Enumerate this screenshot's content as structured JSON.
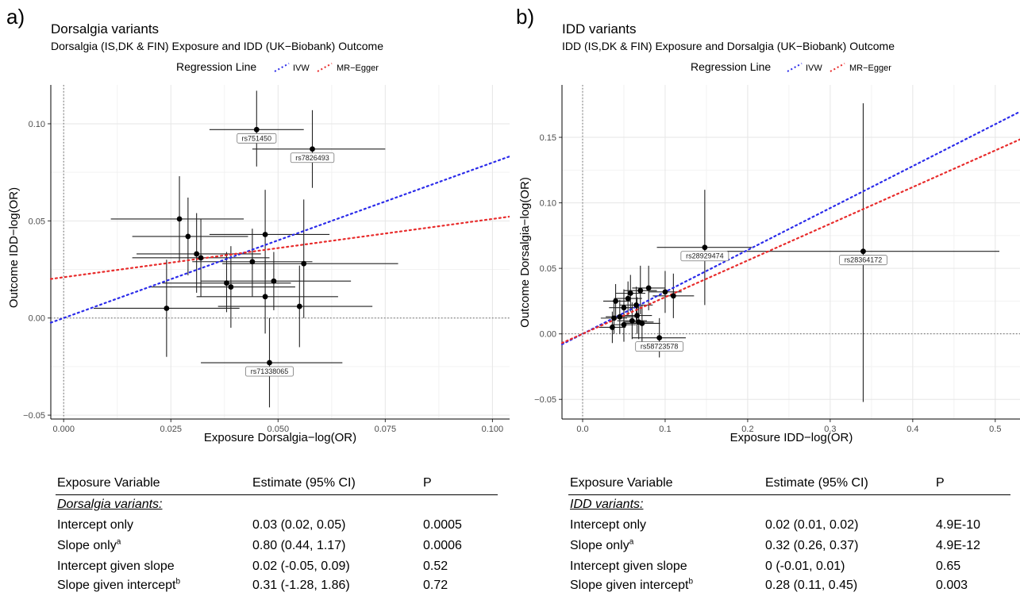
{
  "chart_data": [
    {
      "panel_label": "a)",
      "type": "scatter",
      "title": "Dorsalgia variants",
      "subtitle": "Dorsalgia (IS,DK & FIN) Exposure and IDD (UK−Biobank) Outcome",
      "legend_title": "Regression Line",
      "legend_position": "top",
      "series": [
        {
          "name": "IVW",
          "color": "#2b2bea"
        },
        {
          "name": "MR−Egger",
          "color": "#e82b2b"
        }
      ],
      "xlabel": "Exposure Dorsalgia−log(OR)",
      "ylabel": "Outcome IDD−log(OR)",
      "xlim": [
        -0.003,
        0.104
      ],
      "ylim": [
        -0.052,
        0.12
      ],
      "xticks": [
        0.0,
        0.025,
        0.05,
        0.075,
        0.1
      ],
      "xtick_labels": [
        "0.000",
        "0.025",
        "0.050",
        "0.075",
        "0.100"
      ],
      "yticks": [
        -0.05,
        0.0,
        0.05,
        0.1
      ],
      "ytick_labels": [
        "−0.05",
        "0.00",
        "0.05",
        "0.10"
      ],
      "grid": true,
      "lines": [
        {
          "name": "IVW",
          "intercept": 0.0,
          "slope": 0.8
        },
        {
          "name": "MR−Egger",
          "intercept": 0.021,
          "slope": 0.3
        }
      ],
      "points": [
        {
          "x": 0.045,
          "y": 0.097,
          "xlo": 0.034,
          "xhi": 0.056,
          "ylo": 0.078,
          "yhi": 0.117,
          "label": "rs751450"
        },
        {
          "x": 0.058,
          "y": 0.087,
          "xlo": 0.044,
          "xhi": 0.075,
          "ylo": 0.067,
          "yhi": 0.107,
          "label": "rs7826493"
        },
        {
          "x": 0.048,
          "y": -0.023,
          "xlo": 0.032,
          "xhi": 0.065,
          "ylo": -0.046,
          "yhi": 0.0,
          "label": "rs71338065"
        },
        {
          "x": 0.027,
          "y": 0.051,
          "xlo": 0.011,
          "xhi": 0.042,
          "ylo": 0.029,
          "yhi": 0.073
        },
        {
          "x": 0.029,
          "y": 0.042,
          "xlo": 0.016,
          "xhi": 0.043,
          "ylo": 0.022,
          "yhi": 0.062
        },
        {
          "x": 0.031,
          "y": 0.033,
          "xlo": 0.017,
          "xhi": 0.046,
          "ylo": 0.013,
          "yhi": 0.054
        },
        {
          "x": 0.032,
          "y": 0.031,
          "xlo": 0.016,
          "xhi": 0.048,
          "ylo": 0.011,
          "yhi": 0.051
        },
        {
          "x": 0.024,
          "y": 0.005,
          "xlo": 0.007,
          "xhi": 0.041,
          "ylo": -0.02,
          "yhi": 0.03
        },
        {
          "x": 0.038,
          "y": 0.018,
          "xlo": 0.023,
          "xhi": 0.053,
          "ylo": 0.003,
          "yhi": 0.034
        },
        {
          "x": 0.039,
          "y": 0.016,
          "xlo": 0.02,
          "xhi": 0.054,
          "ylo": -0.005,
          "yhi": 0.037
        },
        {
          "x": 0.044,
          "y": 0.029,
          "xlo": 0.03,
          "xhi": 0.058,
          "ylo": 0.011,
          "yhi": 0.046
        },
        {
          "x": 0.047,
          "y": 0.043,
          "xlo": 0.034,
          "xhi": 0.062,
          "ylo": 0.02,
          "yhi": 0.066
        },
        {
          "x": 0.047,
          "y": 0.011,
          "xlo": 0.031,
          "xhi": 0.064,
          "ylo": -0.008,
          "yhi": 0.03
        },
        {
          "x": 0.049,
          "y": 0.019,
          "xlo": 0.032,
          "xhi": 0.067,
          "ylo": 0.004,
          "yhi": 0.034
        },
        {
          "x": 0.055,
          "y": 0.006,
          "xlo": 0.036,
          "xhi": 0.072,
          "ylo": -0.015,
          "yhi": 0.027
        },
        {
          "x": 0.056,
          "y": 0.028,
          "xlo": 0.037,
          "xhi": 0.078,
          "ylo": 0.0,
          "yhi": 0.061
        }
      ]
    },
    {
      "panel_label": "b)",
      "type": "scatter",
      "title": "IDD variants",
      "subtitle": "IDD (IS,DK & FIN) Exposure and Dorsalgia (UK−Biobank) Outcome",
      "legend_title": "Regression Line",
      "legend_position": "top",
      "series": [
        {
          "name": "IVW",
          "color": "#2b2bea"
        },
        {
          "name": "MR−Egger",
          "color": "#e82b2b"
        }
      ],
      "xlabel": "Exposure IDD−log(OR)",
      "ylabel": "Outcome Dorsalgia−log(OR)",
      "xlim": [
        -0.025,
        0.53
      ],
      "ylim": [
        -0.065,
        0.19
      ],
      "xticks": [
        0.0,
        0.1,
        0.2,
        0.3,
        0.4,
        0.5
      ],
      "xtick_labels": [
        "0.0",
        "0.1",
        "0.2",
        "0.3",
        "0.4",
        "0.5"
      ],
      "yticks": [
        -0.05,
        0.0,
        0.05,
        0.1,
        0.15
      ],
      "ytick_labels": [
        "−0.05",
        "0.00",
        "0.05",
        "0.10",
        "0.15"
      ],
      "grid": true,
      "lines": [
        {
          "name": "IVW",
          "intercept": 0.0,
          "slope": 0.32
        },
        {
          "name": "MR−Egger",
          "intercept": 0.0,
          "slope": 0.28
        }
      ],
      "points": [
        {
          "x": 0.148,
          "y": 0.066,
          "xlo": 0.09,
          "xhi": 0.205,
          "ylo": 0.022,
          "yhi": 0.11,
          "label": "rs28929474"
        },
        {
          "x": 0.34,
          "y": 0.063,
          "xlo": 0.175,
          "xhi": 0.505,
          "ylo": -0.052,
          "yhi": 0.176,
          "label": "rs28364172"
        },
        {
          "x": 0.093,
          "y": -0.003,
          "xlo": 0.06,
          "xhi": 0.125,
          "ylo": -0.018,
          "yhi": 0.012,
          "label": "rs58723578"
        },
        {
          "x": 0.036,
          "y": 0.005,
          "xlo": 0.02,
          "xhi": 0.052,
          "ylo": -0.007,
          "yhi": 0.017
        },
        {
          "x": 0.04,
          "y": 0.025,
          "xlo": 0.025,
          "xhi": 0.058,
          "ylo": 0.012,
          "yhi": 0.038
        },
        {
          "x": 0.045,
          "y": 0.013,
          "xlo": 0.028,
          "xhi": 0.065,
          "ylo": 0.0,
          "yhi": 0.026
        },
        {
          "x": 0.05,
          "y": 0.02,
          "xlo": 0.032,
          "xhi": 0.068,
          "ylo": 0.006,
          "yhi": 0.034
        },
        {
          "x": 0.055,
          "y": 0.027,
          "xlo": 0.038,
          "xhi": 0.072,
          "ylo": 0.014,
          "yhi": 0.04
        },
        {
          "x": 0.06,
          "y": 0.01,
          "xlo": 0.042,
          "xhi": 0.078,
          "ylo": -0.004,
          "yhi": 0.024
        },
        {
          "x": 0.065,
          "y": 0.022,
          "xlo": 0.045,
          "xhi": 0.085,
          "ylo": 0.008,
          "yhi": 0.036
        },
        {
          "x": 0.07,
          "y": 0.033,
          "xlo": 0.05,
          "xhi": 0.09,
          "ylo": 0.015,
          "yhi": 0.052
        },
        {
          "x": 0.072,
          "y": 0.008,
          "xlo": 0.05,
          "xhi": 0.094,
          "ylo": -0.006,
          "yhi": 0.022
        },
        {
          "x": 0.08,
          "y": 0.035,
          "xlo": 0.06,
          "xhi": 0.1,
          "ylo": 0.018,
          "yhi": 0.052
        },
        {
          "x": 0.11,
          "y": 0.029,
          "xlo": 0.085,
          "xhi": 0.135,
          "ylo": 0.012,
          "yhi": 0.046
        },
        {
          "x": 0.05,
          "y": 0.007,
          "xlo": 0.035,
          "xhi": 0.065,
          "ylo": -0.006,
          "yhi": 0.02
        },
        {
          "x": 0.058,
          "y": 0.031,
          "xlo": 0.04,
          "xhi": 0.076,
          "ylo": 0.017,
          "yhi": 0.045
        },
        {
          "x": 0.066,
          "y": 0.014,
          "xlo": 0.048,
          "xhi": 0.084,
          "ylo": 0.0,
          "yhi": 0.028
        },
        {
          "x": 0.038,
          "y": 0.012,
          "xlo": 0.022,
          "xhi": 0.054,
          "ylo": 0.0,
          "yhi": 0.024
        },
        {
          "x": 0.068,
          "y": 0.009,
          "xlo": 0.05,
          "xhi": 0.086,
          "ylo": -0.004,
          "yhi": 0.022
        },
        {
          "x": 0.1,
          "y": 0.032,
          "xlo": 0.08,
          "xhi": 0.12,
          "ylo": 0.016,
          "yhi": 0.048
        }
      ]
    }
  ],
  "tables": [
    {
      "headers": [
        "Exposure Variable",
        "Estimate (95% CI)",
        "P"
      ],
      "section": "Dorsalgia variants:",
      "rows": [
        {
          "label": "Intercept only",
          "sup": "",
          "estimate": "0.03 (0.02, 0.05)",
          "p": "0.0005"
        },
        {
          "label": "Slope only",
          "sup": "a",
          "estimate": "0.80 (0.44, 1.17)",
          "p": "0.0006"
        },
        {
          "label": "Intercept given slope",
          "sup": "",
          "estimate": "0.02 (-0.05, 0.09)",
          "p": "0.52"
        },
        {
          "label": "Slope given intercept",
          "sup": "b",
          "estimate": "0.31 (-1.28, 1.86)",
          "p": "0.72"
        }
      ]
    },
    {
      "headers": [
        "Exposure Variable",
        "Estimate (95% CI)",
        "P"
      ],
      "section": "IDD variants:",
      "rows": [
        {
          "label": "Intercept only",
          "sup": "",
          "estimate": "0.02 (0.01, 0.02)",
          "p": "4.9E-10"
        },
        {
          "label": "Slope only",
          "sup": "a",
          "estimate": "0.32 (0.26, 0.37)",
          "p": "4.9E-12"
        },
        {
          "label": "Intercept given slope",
          "sup": "",
          "estimate": "0 (-0.01, 0.01)",
          "p": "0.65"
        },
        {
          "label": "Slope given intercept",
          "sup": "b",
          "estimate": "0.28 (0.11, 0.45)",
          "p": "0.003"
        }
      ]
    }
  ]
}
